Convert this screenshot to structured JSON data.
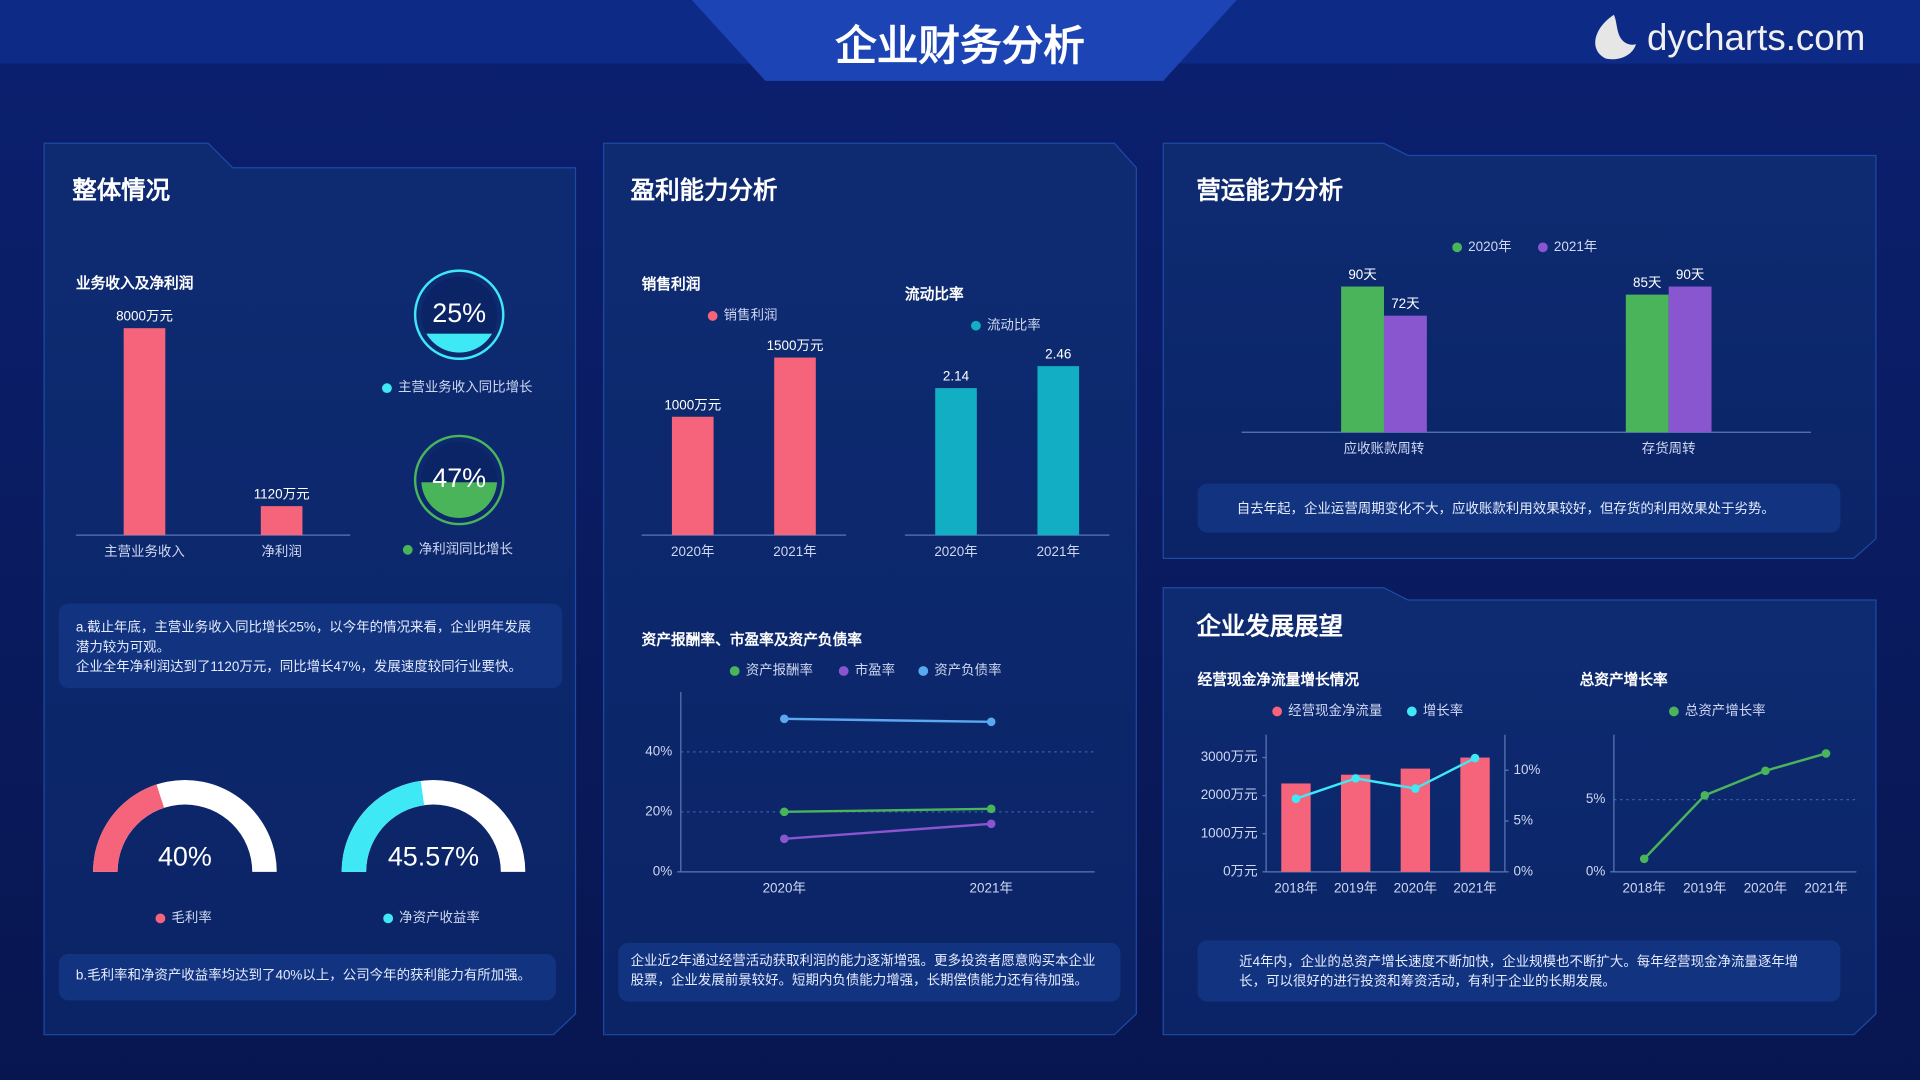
{
  "header": {
    "title": "企业财务分析",
    "logo": "dycharts.com"
  },
  "panels": [
    {
      "title": "整体情况",
      "notes": [
        [
          "a.截止年底，主营业务收入同比增长25%，以今年的情况来看，企业明年发展",
          "潜力较为可观。",
          "企业全年净利润达到了1120万元，同比增长47%，发展速度较同行业要快。"
        ],
        [
          "b.毛利率和净资产收益率均达到了40%以上，公司今年的获利能力有所加强。"
        ]
      ]
    },
    {
      "title": "盈利能力分析",
      "notes": [
        [
          "企业近2年通过经营活动获取利润的能力逐渐增强。更多投资者愿意购买本企业",
          "股票，企业发展前景较好。短期内负债能力增强，长期偿债能力还有待加强。"
        ]
      ]
    },
    {
      "title": "营运能力分析",
      "notes": [
        [
          "自去年起，企业运营周期变化不大，应收账款利用效果较好，但存货的利用效果处于劣势。"
        ]
      ]
    },
    {
      "title": "企业发展展望",
      "notes": [
        [
          "近4年内，企业的总资产增长速度不断加快，企业规模也不断扩大。每年经营现金净流量逐年增",
          "长，可以很好的进行投资和筹资活动，有利于企业的长期发展。"
        ]
      ]
    }
  ],
  "chart_data": [
    {
      "type": "bar",
      "title": "业务收入及净利润",
      "categories": [
        "主营业务收入",
        "净利润"
      ],
      "series": [
        {
          "color": "#f5647a",
          "values": [
            8000,
            1120
          ],
          "value_labels": [
            "8000万元",
            "1120万元"
          ]
        }
      ]
    },
    {
      "type": "liquid",
      "series": [
        {
          "name": "主营业务收入同比增长",
          "color": "#3ee8f5",
          "values": [
            25
          ],
          "value_labels": [
            "25%"
          ]
        }
      ]
    },
    {
      "type": "liquid",
      "series": [
        {
          "name": "净利润同比增长",
          "color": "#4ab45a",
          "values": [
            47
          ],
          "value_labels": [
            "47%"
          ]
        }
      ]
    },
    {
      "type": "gauge",
      "series": [
        {
          "name": "毛利率",
          "color": "#f5647a",
          "values": [
            40
          ],
          "value_labels": [
            "40%"
          ]
        }
      ]
    },
    {
      "type": "gauge",
      "series": [
        {
          "name": "净资产收益率",
          "color": "#3ee8f5",
          "values": [
            45.57
          ],
          "value_labels": [
            "45.57%"
          ]
        }
      ]
    },
    {
      "type": "bar",
      "title": "销售利润",
      "categories": [
        "2020年",
        "2021年"
      ],
      "series": [
        {
          "name": "销售利润",
          "color": "#f5647a",
          "values": [
            1000,
            1500
          ],
          "value_labels": [
            "1000万元",
            "1500万元"
          ]
        }
      ]
    },
    {
      "type": "bar",
      "title": "流动比率",
      "categories": [
        "2020年",
        "2021年"
      ],
      "series": [
        {
          "name": "流动比率",
          "color": "#12aec4",
          "values": [
            2.14,
            2.46
          ]
        }
      ]
    },
    {
      "type": "line",
      "title": "资产报酬率、市盈率及资产负债率",
      "categories": [
        "2020年",
        "2021年"
      ],
      "series": [
        {
          "name": "资产报酬率",
          "color": "#4ab45a",
          "values": [
            20,
            21
          ]
        },
        {
          "name": "市盈率",
          "color": "#8a56d0",
          "values": [
            11,
            16
          ]
        },
        {
          "name": "资产负债率",
          "color": "#5aa8f0",
          "values": [
            51,
            50
          ]
        }
      ],
      "ylim": [
        0,
        60
      ],
      "yticks": [
        {
          "value": 0,
          "label": "0%"
        },
        {
          "value": 20,
          "label": "20%"
        },
        {
          "value": 40,
          "label": "40%"
        }
      ],
      "grid": true
    },
    {
      "type": "bar",
      "categories": [
        "应收账款周转",
        "存货周转"
      ],
      "series": [
        {
          "name": "2020年",
          "color": "#4ab45a",
          "values": [
            90,
            85
          ],
          "value_labels": [
            "90天",
            "85天"
          ]
        },
        {
          "name": "2021年",
          "color": "#8a56d0",
          "values": [
            72,
            90
          ],
          "value_labels": [
            "72天",
            "90天"
          ]
        }
      ]
    },
    {
      "type": "bar-line",
      "title": "经营现金净流量增长情况",
      "categories": [
        "2018年",
        "2019年",
        "2020年",
        "2021年"
      ],
      "series": [
        {
          "name": "经营现金净流量",
          "color": "#f5647a",
          "type": "bar",
          "values": [
            2320,
            2550,
            2710,
            3000
          ]
        },
        {
          "name": "增长率",
          "color": "#3ee8f5",
          "type": "line",
          "axis": "y2",
          "values": [
            7.2,
            9.2,
            8.2,
            11.2
          ]
        }
      ],
      "ylim": [
        0,
        3600
      ],
      "yticks": [
        {
          "value": 0,
          "label": "0万元"
        },
        {
          "value": 1000,
          "label": "1000万元"
        },
        {
          "value": 2000,
          "label": "2000万元"
        },
        {
          "value": 3000,
          "label": "3000万元"
        }
      ],
      "y2lim": [
        0,
        13.5
      ],
      "y2ticks": [
        {
          "value": 0,
          "label": "0%"
        },
        {
          "value": 5,
          "label": "5%"
        },
        {
          "value": 10,
          "label": "10%"
        }
      ],
      "grid": false
    },
    {
      "type": "line",
      "title": "总资产增长率",
      "categories": [
        "2018年",
        "2019年",
        "2020年",
        "2021年"
      ],
      "series": [
        {
          "name": "总资产增长率",
          "color": "#4ab45a",
          "values": [
            0.9,
            5.3,
            7.0,
            8.2
          ]
        }
      ],
      "ylim": [
        0,
        9.5
      ],
      "yticks": [
        {
          "value": 0,
          "label": "0%"
        },
        {
          "value": 5,
          "label": "5%"
        }
      ],
      "grid": true
    }
  ]
}
